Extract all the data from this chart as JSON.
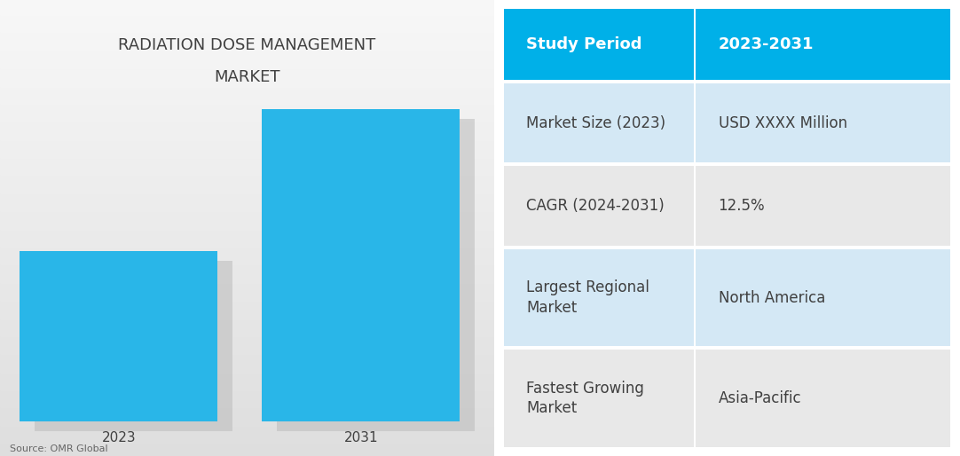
{
  "title_line1": "RADIATION DOSE MANAGEMENT",
  "title_line2": "MARKET",
  "title_fontsize": 13,
  "bar_categories": [
    "2023",
    "2031"
  ],
  "bar_values": [
    0.48,
    0.88
  ],
  "bar_color": "#29B6E8",
  "shadow_color": "#BBBBBB",
  "source_text": "Source: OMR Global",
  "table_header_bg": "#00B0E8",
  "table_header_text": "#FFFFFF",
  "table_row_bg_alt1": "#D4E8F5",
  "table_row_bg_alt2": "#E8E8E8",
  "table_divider_color": "#FFFFFF",
  "table_rows": [
    [
      "Study Period",
      "2023-2031"
    ],
    [
      "Market Size (2023)",
      "USD XXXX Million"
    ],
    [
      "CAGR (2024-2031)",
      "12.5%"
    ],
    [
      "Largest Regional\nMarket",
      "North America"
    ],
    [
      "Fastest Growing\nMarket",
      "Asia-Pacific"
    ]
  ],
  "text_color": "#404040",
  "label_fontsize": 11,
  "source_fontsize": 8,
  "table_header_fontsize": 13,
  "table_body_fontsize": 12
}
